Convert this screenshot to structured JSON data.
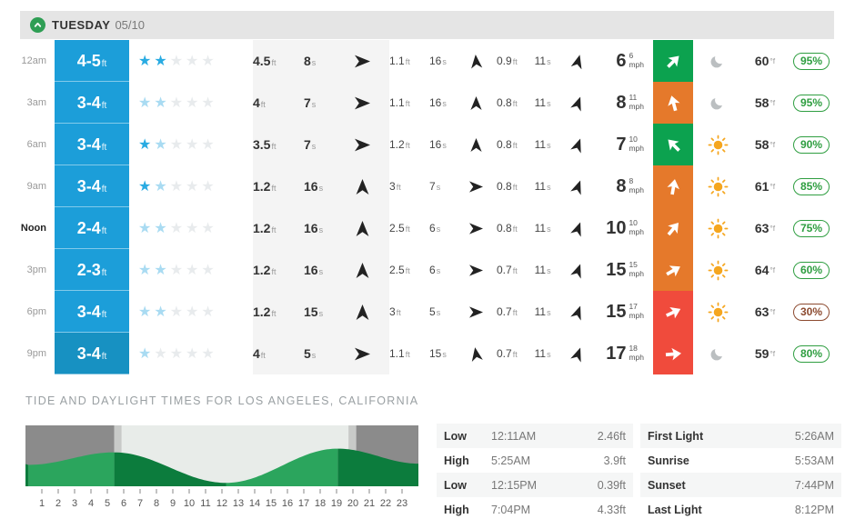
{
  "header": {
    "day": "TUESDAY",
    "date": "05/10"
  },
  "units": {
    "height": "ft",
    "period": "s",
    "wind": "mph",
    "temp": "°f"
  },
  "forecast": {
    "rows": [
      {
        "time": "12am",
        "time_class": "",
        "surf": "4-5",
        "surf_bg": "#1C9ED9",
        "stars": [
          "solid",
          "solid",
          "empty",
          "empty",
          "empty"
        ],
        "s1": {
          "h": "4.5",
          "p": "8",
          "rot": 90
        },
        "s2": {
          "h": "1.1",
          "p": "16",
          "rot": -5
        },
        "s3": {
          "h": "0.9",
          "p": "11",
          "rot": 15
        },
        "wind": {
          "speed": "6",
          "gust": "6",
          "rot": 45,
          "color": "#0CA24F"
        },
        "weather": "moon",
        "temp": "60",
        "prob": "95%",
        "prob_color": "#2F9E41"
      },
      {
        "time": "3am",
        "time_class": "",
        "surf": "3-4",
        "surf_bg": "#1C9ED9",
        "stars": [
          "faded",
          "faded",
          "empty",
          "empty",
          "empty"
        ],
        "s1": {
          "h": "4",
          "p": "7",
          "rot": 90
        },
        "s2": {
          "h": "1.1",
          "p": "16",
          "rot": 0
        },
        "s3": {
          "h": "0.8",
          "p": "11",
          "rot": 20
        },
        "wind": {
          "speed": "8",
          "gust": "11",
          "rot": -15,
          "color": "#E5792B"
        },
        "weather": "moon",
        "temp": "58",
        "prob": "95%",
        "prob_color": "#2F9E41"
      },
      {
        "time": "6am",
        "time_class": "",
        "surf": "3-4",
        "surf_bg": "#1C9ED9",
        "stars": [
          "solid",
          "faded",
          "empty",
          "empty",
          "empty"
        ],
        "s1": {
          "h": "3.5",
          "p": "7",
          "rot": 90
        },
        "s2": {
          "h": "1.2",
          "p": "16",
          "rot": 0
        },
        "s3": {
          "h": "0.8",
          "p": "11",
          "rot": 20
        },
        "wind": {
          "speed": "7",
          "gust": "10",
          "rot": -45,
          "color": "#0CA24F"
        },
        "weather": "sun",
        "temp": "58",
        "prob": "90%",
        "prob_color": "#2F9E41"
      },
      {
        "time": "9am",
        "time_class": "",
        "surf": "3-4",
        "surf_bg": "#1C9ED9",
        "stars": [
          "solid",
          "faded",
          "empty",
          "empty",
          "empty"
        ],
        "s1": {
          "h": "1.2",
          "p": "16",
          "rot": 0
        },
        "s2": {
          "h": "3",
          "p": "7",
          "rot": 90
        },
        "s3": {
          "h": "0.8",
          "p": "11",
          "rot": 20
        },
        "wind": {
          "speed": "8",
          "gust": "8",
          "rot": 10,
          "color": "#E5792B"
        },
        "weather": "sun",
        "temp": "61",
        "prob": "85%",
        "prob_color": "#2F9E41"
      },
      {
        "time": "Noon",
        "time_class": "bold",
        "surf": "2-4",
        "surf_bg": "#1C9ED9",
        "stars": [
          "faded",
          "faded",
          "empty",
          "empty",
          "empty"
        ],
        "s1": {
          "h": "1.2",
          "p": "16",
          "rot": 0
        },
        "s2": {
          "h": "2.5",
          "p": "6",
          "rot": 90
        },
        "s3": {
          "h": "0.8",
          "p": "11",
          "rot": 20
        },
        "wind": {
          "speed": "10",
          "gust": "10",
          "rot": 40,
          "color": "#E5792B"
        },
        "weather": "sun",
        "temp": "63",
        "prob": "75%",
        "prob_color": "#2F9E41"
      },
      {
        "time": "3pm",
        "time_class": "",
        "surf": "2-3",
        "surf_bg": "#1C9ED9",
        "stars": [
          "faded",
          "faded",
          "empty",
          "empty",
          "empty"
        ],
        "s1": {
          "h": "1.2",
          "p": "16",
          "rot": 0
        },
        "s2": {
          "h": "2.5",
          "p": "6",
          "rot": 90
        },
        "s3": {
          "h": "0.7",
          "p": "11",
          "rot": 20
        },
        "wind": {
          "speed": "15",
          "gust": "15",
          "rot": 60,
          "color": "#E5792B"
        },
        "weather": "sun",
        "temp": "64",
        "prob": "60%",
        "prob_color": "#2F9E41"
      },
      {
        "time": "6pm",
        "time_class": "",
        "surf": "3-4",
        "surf_bg": "#1C9ED9",
        "stars": [
          "faded",
          "faded",
          "empty",
          "empty",
          "empty"
        ],
        "s1": {
          "h": "1.2",
          "p": "15",
          "rot": 0
        },
        "s2": {
          "h": "3",
          "p": "5",
          "rot": 90
        },
        "s3": {
          "h": "0.7",
          "p": "11",
          "rot": 20
        },
        "wind": {
          "speed": "15",
          "gust": "17",
          "rot": 65,
          "color": "#F04B3C"
        },
        "weather": "sun",
        "temp": "63",
        "prob": "30%",
        "prob_color": "#8C4A2F"
      },
      {
        "time": "9pm",
        "time_class": "",
        "surf": "3-4",
        "surf_bg": "#1791C2",
        "stars": [
          "faded",
          "empty",
          "empty",
          "empty",
          "empty"
        ],
        "s1": {
          "h": "4",
          "p": "5",
          "rot": 90
        },
        "s2": {
          "h": "1.1",
          "p": "15",
          "rot": -10
        },
        "s3": {
          "h": "0.7",
          "p": "11",
          "rot": 20
        },
        "wind": {
          "speed": "17",
          "gust": "18",
          "rot": 85,
          "color": "#F04B3C"
        },
        "weather": "moon",
        "temp": "59",
        "prob": "80%",
        "prob_color": "#2F9E41"
      }
    ]
  },
  "tide_section": {
    "title": "TIDE AND DAYLIGHT TIMES FOR LOS ANGELES, CALIFORNIA"
  },
  "chart_data": {
    "type": "area",
    "xlabel_hours": [
      1,
      2,
      3,
      4,
      5,
      6,
      7,
      8,
      9,
      10,
      11,
      12,
      13,
      14,
      15,
      16,
      17,
      18,
      19,
      20,
      21,
      22,
      23
    ],
    "xlim": [
      0,
      24
    ],
    "ylim": [
      0,
      7
    ],
    "tide_curve": [
      {
        "t": 0.0,
        "h": 2.55
      },
      {
        "t": 0.18,
        "h": 2.46
      },
      {
        "t": 5.42,
        "h": 3.9
      },
      {
        "t": 12.25,
        "h": 0.39
      },
      {
        "t": 19.07,
        "h": 4.33
      },
      {
        "t": 24.0,
        "h": 2.6
      }
    ],
    "segment_colors": [
      "#0C7C3D",
      "#2BA55D",
      "#0C7C3D",
      "#2BA55D",
      "#0C7C3D"
    ],
    "daylight_bands": [
      {
        "from": 0,
        "to": 5.43,
        "color": "#8B8B8B"
      },
      {
        "from": 5.43,
        "to": 5.88,
        "color": "#C8CAC8"
      },
      {
        "from": 5.88,
        "to": 19.73,
        "color": "#E8ECE9"
      },
      {
        "from": 19.73,
        "to": 20.2,
        "color": "#C8CAC8"
      },
      {
        "from": 20.2,
        "to": 24,
        "color": "#8B8B8B"
      }
    ]
  },
  "tide_table": {
    "rows": [
      {
        "label": "Low",
        "time": "12:11AM",
        "height": "2.46ft"
      },
      {
        "label": "High",
        "time": "5:25AM",
        "height": "3.9ft"
      },
      {
        "label": "Low",
        "time": "12:15PM",
        "height": "0.39ft"
      },
      {
        "label": "High",
        "time": "7:04PM",
        "height": "4.33ft"
      }
    ]
  },
  "sun_table": {
    "rows": [
      {
        "label": "First Light",
        "value": "5:26AM"
      },
      {
        "label": "Sunrise",
        "value": "5:53AM"
      },
      {
        "label": "Sunset",
        "value": "7:44PM"
      },
      {
        "label": "Last Light",
        "value": "8:12PM"
      }
    ]
  }
}
